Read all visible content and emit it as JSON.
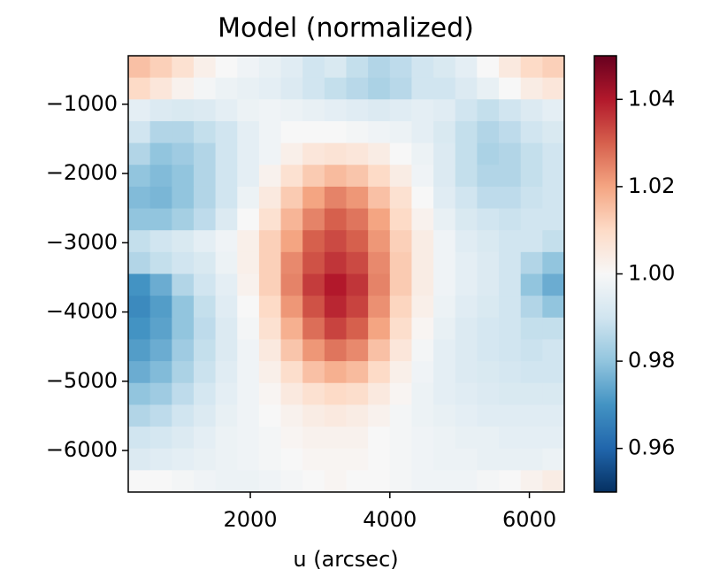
{
  "chart_data": {
    "type": "heatmap",
    "title": "Model (normalized)",
    "xlabel": "u (arcsec)",
    "xlim": [
      250,
      6500
    ],
    "xticks": [
      2000,
      4000,
      6000
    ],
    "ylim": [
      -6600,
      -300
    ],
    "yticks": [
      {
        "value": -6000,
        "label": "−6000"
      },
      {
        "value": -5000,
        "label": "−5000"
      },
      {
        "value": -4000,
        "label": "−4000"
      },
      {
        "value": -3000,
        "label": "−3000"
      },
      {
        "value": -2000,
        "label": "−2000"
      },
      {
        "value": -1000,
        "label": "−1000"
      }
    ],
    "clim": [
      0.95,
      1.05
    ],
    "colorbar_ticks": [
      0.96,
      0.98,
      {
        "value": 1.0,
        "label": "1.00"
      },
      1.02,
      1.04
    ],
    "colormap": [
      "#053061",
      "#2166ac",
      "#4393c3",
      "#92c5de",
      "#d1e5f0",
      "#f7f7f7",
      "#fddbc7",
      "#f4a582",
      "#d6604d",
      "#b2182b",
      "#67001f"
    ],
    "z": [
      [
        1.015,
        1.012,
        1.008,
        1.003,
        1.0,
        0.998,
        0.996,
        0.994,
        0.99,
        0.992,
        0.988,
        0.985,
        0.987,
        0.99,
        0.992,
        0.995,
        1.0,
        1.005,
        1.01,
        1.012
      ],
      [
        1.01,
        1.006,
        1.002,
        0.999,
        0.997,
        0.996,
        0.995,
        0.993,
        0.99,
        0.988,
        0.986,
        0.984,
        0.986,
        0.99,
        0.99,
        0.993,
        0.996,
        1.0,
        1.004,
        1.006
      ],
      [
        0.995,
        0.993,
        0.992,
        0.993,
        0.995,
        0.997,
        0.998,
        0.997,
        0.996,
        0.995,
        0.994,
        0.993,
        0.994,
        0.995,
        0.994,
        0.99,
        0.988,
        0.99,
        0.993,
        0.995
      ],
      [
        0.99,
        0.985,
        0.985,
        0.988,
        0.99,
        0.995,
        0.998,
        1.0,
        1.0,
        1.0,
        0.999,
        0.998,
        0.997,
        0.995,
        0.992,
        0.988,
        0.985,
        0.987,
        0.99,
        0.992
      ],
      [
        0.985,
        0.98,
        0.982,
        0.985,
        0.99,
        0.995,
        0.998,
        1.003,
        1.006,
        1.007,
        1.006,
        1.004,
        1.0,
        0.997,
        0.993,
        0.988,
        0.984,
        0.985,
        0.988,
        0.99
      ],
      [
        0.98,
        0.978,
        0.98,
        0.985,
        0.99,
        0.995,
        1.002,
        1.008,
        1.013,
        1.016,
        1.014,
        1.01,
        1.004,
        0.998,
        0.993,
        0.988,
        0.985,
        0.985,
        0.988,
        0.99
      ],
      [
        0.978,
        0.977,
        0.98,
        0.985,
        0.99,
        0.997,
        1.005,
        1.013,
        1.02,
        1.025,
        1.022,
        1.015,
        1.008,
        1.0,
        0.994,
        0.99,
        0.987,
        0.987,
        0.989,
        0.99
      ],
      [
        0.98,
        0.98,
        0.983,
        0.987,
        0.993,
        1.0,
        1.008,
        1.017,
        1.025,
        1.03,
        1.027,
        1.02,
        1.01,
        1.002,
        0.996,
        0.992,
        0.99,
        0.989,
        0.99,
        0.99
      ],
      [
        0.988,
        0.99,
        0.992,
        0.995,
        0.998,
        1.003,
        1.012,
        1.02,
        1.03,
        1.033,
        1.03,
        1.022,
        1.012,
        1.004,
        0.998,
        0.994,
        0.992,
        0.99,
        0.99,
        0.988
      ],
      [
        0.985,
        0.988,
        0.99,
        0.992,
        0.997,
        1.003,
        1.012,
        1.024,
        1.032,
        1.036,
        1.033,
        1.024,
        1.013,
        1.004,
        0.998,
        0.995,
        0.993,
        0.99,
        0.985,
        0.98
      ],
      [
        0.97,
        0.975,
        0.985,
        0.99,
        0.995,
        1.002,
        1.012,
        1.025,
        1.035,
        1.04,
        1.036,
        1.025,
        1.013,
        1.004,
        0.998,
        0.995,
        0.993,
        0.99,
        0.98,
        0.975
      ],
      [
        0.968,
        0.972,
        0.98,
        0.988,
        0.994,
        1.0,
        1.01,
        1.022,
        1.032,
        1.038,
        1.034,
        1.023,
        1.011,
        1.003,
        0.997,
        0.994,
        0.992,
        0.99,
        0.985,
        0.98
      ],
      [
        0.97,
        0.973,
        0.98,
        0.987,
        0.993,
        0.999,
        1.008,
        1.018,
        1.028,
        1.034,
        1.03,
        1.02,
        1.009,
        1.001,
        0.996,
        0.993,
        0.991,
        0.99,
        0.988,
        0.988
      ],
      [
        0.972,
        0.975,
        0.982,
        0.988,
        0.993,
        0.998,
        1.005,
        1.014,
        1.022,
        1.027,
        1.024,
        1.015,
        1.006,
        0.999,
        0.995,
        0.993,
        0.991,
        0.99,
        0.989,
        0.99
      ],
      [
        0.975,
        0.978,
        0.984,
        0.989,
        0.994,
        0.998,
        1.003,
        1.009,
        1.015,
        1.018,
        1.016,
        1.01,
        1.003,
        0.998,
        0.995,
        0.993,
        0.992,
        0.991,
        0.99,
        0.99
      ],
      [
        0.98,
        0.982,
        0.987,
        0.991,
        0.995,
        0.998,
        1.001,
        1.005,
        1.008,
        1.01,
        1.009,
        1.005,
        1.001,
        0.997,
        0.995,
        0.994,
        0.993,
        0.992,
        0.992,
        0.992
      ],
      [
        0.985,
        0.987,
        0.99,
        0.993,
        0.996,
        0.998,
        1.0,
        1.002,
        1.004,
        1.005,
        1.004,
        1.002,
        0.999,
        0.997,
        0.996,
        0.995,
        0.994,
        0.994,
        0.994,
        0.994
      ],
      [
        0.99,
        0.991,
        0.993,
        0.995,
        0.997,
        0.998,
        0.999,
        1.001,
        1.002,
        1.002,
        1.002,
        1.0,
        0.999,
        0.998,
        0.997,
        0.996,
        0.996,
        0.995,
        0.995,
        0.995
      ],
      [
        0.993,
        0.994,
        0.995,
        0.996,
        0.997,
        0.998,
        0.999,
        1.0,
        1.001,
        1.001,
        1.001,
        1.0,
        0.999,
        0.998,
        0.997,
        0.997,
        0.996,
        0.996,
        0.996,
        0.997
      ],
      [
        1.0,
        1.0,
        0.999,
        0.998,
        0.997,
        0.997,
        0.998,
        0.999,
        1.0,
        1.001,
        1.0,
        1.0,
        0.999,
        0.998,
        0.998,
        0.998,
        0.999,
        1.0,
        1.002,
        1.004
      ]
    ]
  }
}
